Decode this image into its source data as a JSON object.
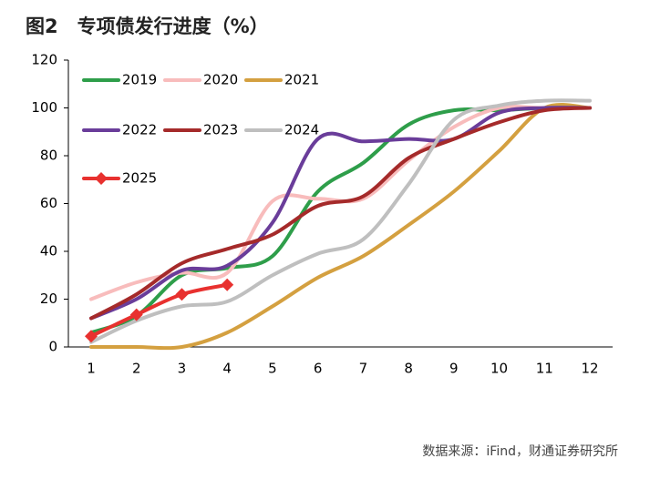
{
  "chart_data": {
    "type": "line",
    "title": "图2　专项债发行进度（%）",
    "source": "数据来源：iFind，财通证券研究所",
    "categories": [
      "1",
      "2",
      "3",
      "4",
      "5",
      "6",
      "7",
      "8",
      "9",
      "10",
      "11",
      "12"
    ],
    "ylim": [
      0,
      120
    ],
    "yticks": [
      0,
      20,
      40,
      60,
      80,
      100,
      120
    ],
    "smooth": true,
    "series": [
      {
        "name": "2019",
        "color": "#2e9e4a",
        "values": [
          6,
          13,
          30,
          33,
          38,
          65,
          77,
          93,
          99,
          99,
          100,
          100
        ]
      },
      {
        "name": "2020",
        "color": "#f8bcbc",
        "values": [
          20,
          27,
          31,
          31,
          61,
          62,
          62,
          78,
          92,
          100,
          100,
          100
        ]
      },
      {
        "name": "2021",
        "color": "#d4a040",
        "values": [
          0,
          0,
          0,
          6,
          17,
          29,
          38,
          51,
          65,
          82,
          100,
          100
        ]
      },
      {
        "name": "2022",
        "color": "#6a3d9a",
        "values": [
          12,
          20,
          32,
          34,
          52,
          87,
          86,
          87,
          87,
          98,
          100,
          100
        ]
      },
      {
        "name": "2023",
        "color": "#a52a2a",
        "values": [
          12,
          22,
          35,
          41,
          47,
          59,
          63,
          79,
          87,
          94,
          99,
          100
        ]
      },
      {
        "name": "2024",
        "color": "#bfbfbf",
        "values": [
          2,
          11,
          17,
          19,
          30,
          39,
          45,
          68,
          95,
          101,
          103,
          103
        ]
      },
      {
        "name": "2025",
        "color": "#e8312f",
        "marker": "diamond",
        "values": [
          4.5,
          13.5,
          22,
          26,
          null,
          null,
          null,
          null,
          null,
          null,
          null,
          null
        ]
      }
    ]
  }
}
